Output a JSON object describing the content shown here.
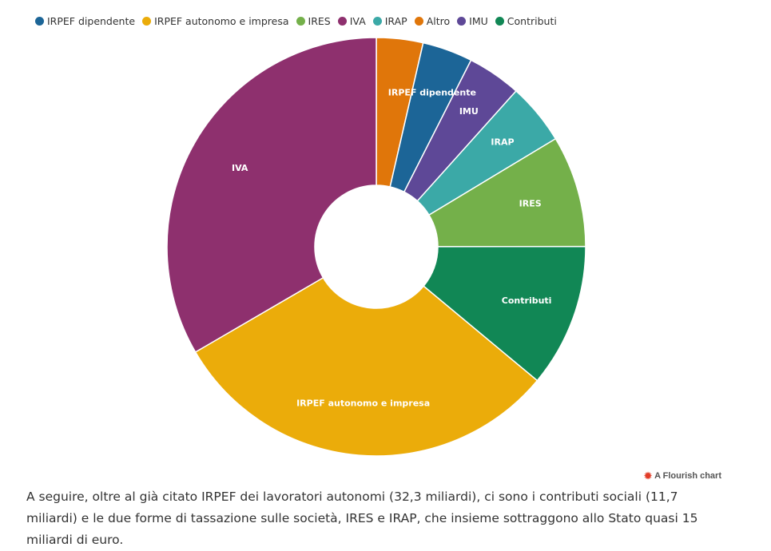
{
  "chart_data": {
    "type": "pie",
    "donut": true,
    "legend_position": "top-left",
    "categories": [
      "IRPEF dipendente",
      "IRPEF autonomo e impresa",
      "IRES",
      "IVA",
      "IRAP",
      "Altro",
      "IMU",
      "Contributi"
    ],
    "colors": {
      "IRPEF dipendente": "#1c6597",
      "IRPEF autonomo e impresa": "#ebac0a",
      "IRES": "#74b04a",
      "IVA": "#8e306e",
      "IRAP": "#3ba9a7",
      "Altro": "#e0760a",
      "IMU": "#5e4897",
      "Contributi": "#118755"
    },
    "slices_clockwise_from_top": [
      {
        "name": "Altro",
        "value": 3.8,
        "label": ""
      },
      {
        "name": "IRPEF dipendente",
        "value": 4.1,
        "label": "IRPEF dipendente"
      },
      {
        "name": "IMU",
        "value": 4.4,
        "label": "IMU"
      },
      {
        "name": "IRAP",
        "value": 5.0,
        "label": "IRAP"
      },
      {
        "name": "IRES",
        "value": 9.1,
        "label": "IRES"
      },
      {
        "name": "Contributi",
        "value": 11.7,
        "label": "Contributi"
      },
      {
        "name": "IRPEF autonomo e impresa",
        "value": 32.3,
        "label": "IRPEF autonomo e impresa"
      },
      {
        "name": "IVA",
        "value": 35.3,
        "label": "IVA"
      }
    ]
  },
  "credit": "A Flourish chart",
  "caption": "A seguire, oltre al già citato IRPEF dei lavoratori autonomi (32,3 miliardi), ci sono i contributi sociali (11,7 miliardi) e le due forme di tassazione sulle società, IRES e IRAP, che insieme sottraggono allo Stato quasi 15 miliardi di euro."
}
